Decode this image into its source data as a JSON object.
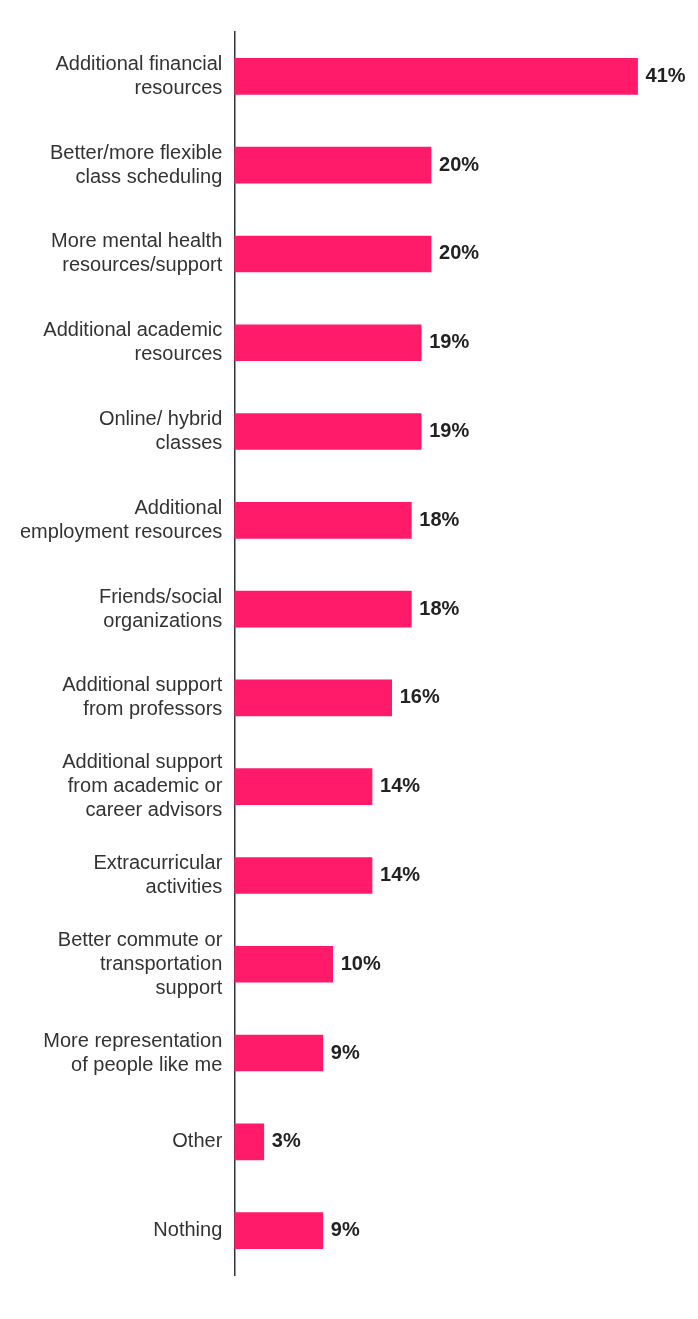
{
  "chart_data": {
    "type": "bar",
    "orientation": "horizontal",
    "color": "#ff1a6a",
    "categories": [
      "Additional financial resources",
      "Better/more flexible class scheduling",
      "More mental health resources/support",
      "Additional academic resources",
      "Online/ hybrid classes",
      "Additional employment resources",
      "Friends/social organizations",
      "Additional support from professors",
      "Additional support from academic or career advisors",
      "Extracurricular activities",
      "Better commute or transportation support",
      "More representation of people like me",
      "Other",
      "Nothing"
    ],
    "values": [
      41,
      20,
      20,
      19,
      19,
      18,
      18,
      16,
      14,
      14,
      10,
      9,
      3,
      9
    ],
    "value_labels": [
      "41%",
      "20%",
      "20%",
      "19%",
      "19%",
      "18%",
      "18%",
      "16%",
      "14%",
      "14%",
      "10%",
      "9%",
      "3%",
      "9%"
    ],
    "grid": false,
    "legend": false
  }
}
